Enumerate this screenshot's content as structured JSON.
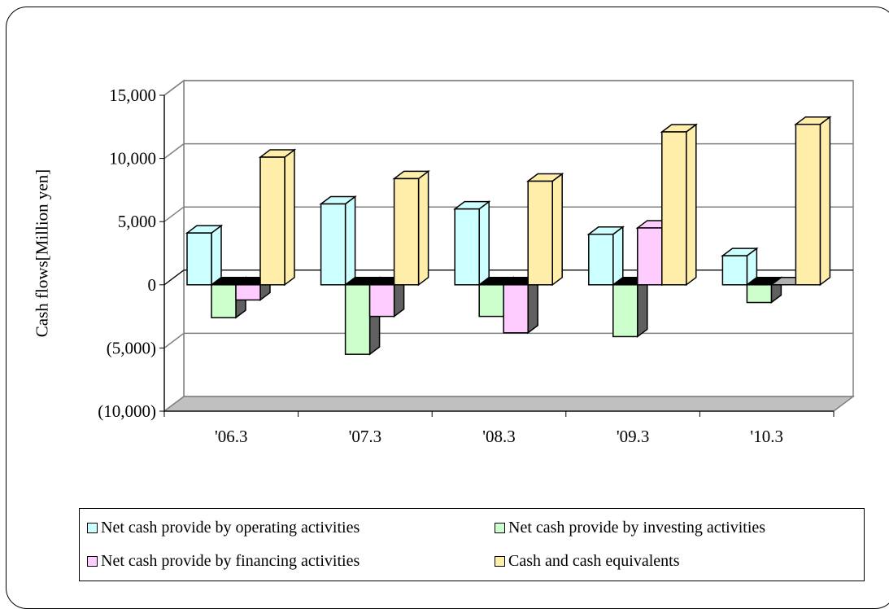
{
  "chart_data": {
    "type": "bar",
    "ylabel": "Cash flows[Million yen]",
    "xlabel": "",
    "ylim": [
      -10000,
      15000
    ],
    "yticks": [
      15000,
      10000,
      5000,
      0,
      -5000,
      -10000
    ],
    "ytick_labels": [
      "15,000",
      "10,000",
      "5,000",
      "0",
      "(5,000)",
      "(10,000)"
    ],
    "categories": [
      "'06.3",
      "'07.3",
      "'08.3",
      "'09.3",
      "'10.3"
    ],
    "series": [
      {
        "name": "Net cash provide by operating activities",
        "color": "#ccffff",
        "values": [
          4100,
          6400,
          6000,
          4000,
          2300
        ]
      },
      {
        "name": "Net cash provide by investing activities",
        "color": "#ccffcc",
        "values": [
          -2600,
          -5500,
          -2500,
          -4100,
          -1400
        ]
      },
      {
        "name": "Net cash provide by financing activities",
        "color": "#ffccff",
        "values": [
          -1200,
          -2500,
          -3800,
          4500,
          0
        ]
      },
      {
        "name": "Cash and cash equivalents",
        "color": "#ffeeaa",
        "values": [
          10100,
          8400,
          8200,
          12100,
          12700
        ]
      }
    ],
    "grid": true,
    "legend": "bottom"
  }
}
